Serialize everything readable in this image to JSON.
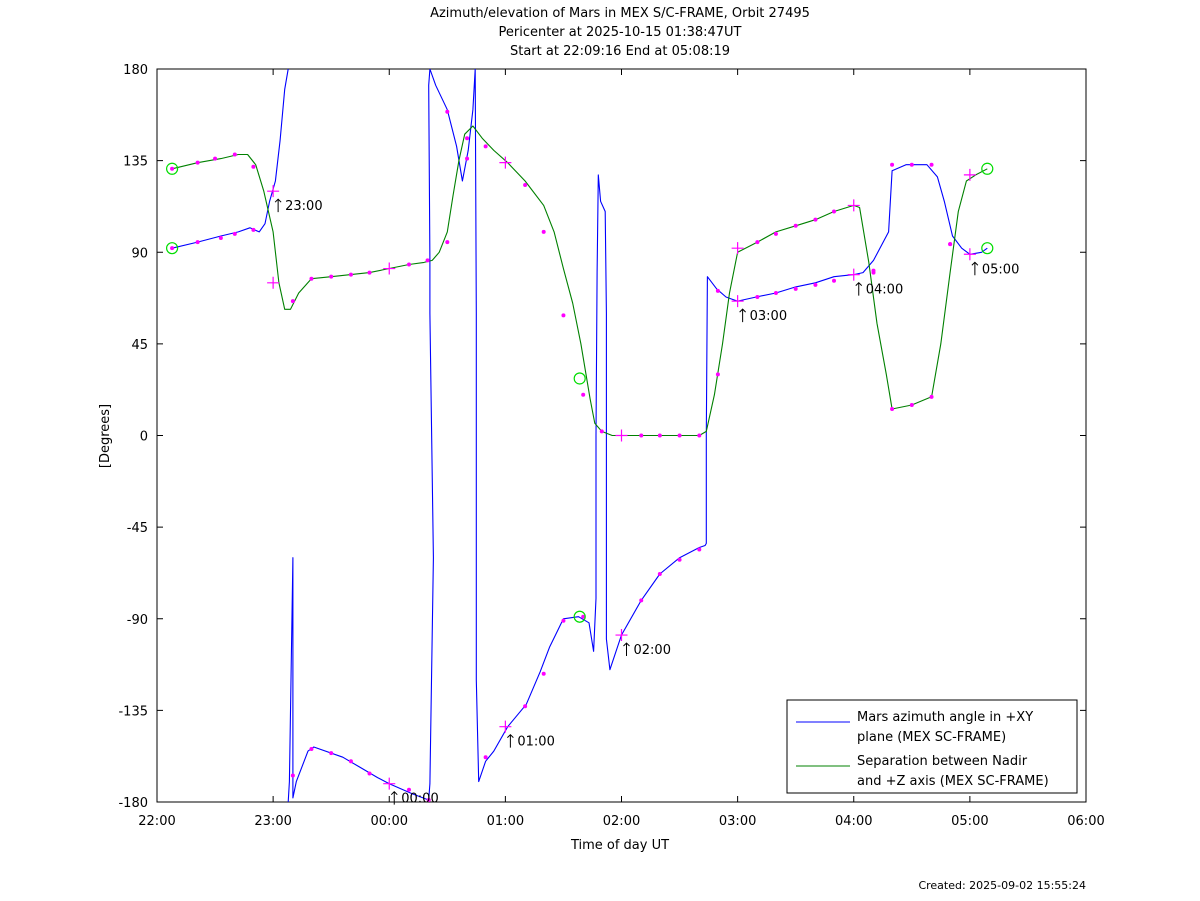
{
  "chart_data": {
    "type": "line",
    "title": "Azimuth/elevation of Mars in MEX S/C-FRAME,  Orbit 27495",
    "subtitle_1": "Pericenter at 2025-10-15 01:38:47UT",
    "subtitle_2": "Start at 22:09:16 End at 05:08:19",
    "xlabel": "Time of day UT",
    "ylabel": "[Degrees]",
    "xlim": [
      22.0,
      30.0
    ],
    "ylim": [
      -180,
      180
    ],
    "x_ticks": [
      {
        "v": 22,
        "label": "22:00"
      },
      {
        "v": 23,
        "label": "23:00"
      },
      {
        "v": 24,
        "label": "00:00"
      },
      {
        "v": 25,
        "label": "01:00"
      },
      {
        "v": 26,
        "label": "02:00"
      },
      {
        "v": 27,
        "label": "03:00"
      },
      {
        "v": 28,
        "label": "04:00"
      },
      {
        "v": 29,
        "label": "05:00"
      },
      {
        "v": 30,
        "label": "06:00"
      }
    ],
    "y_ticks": [
      {
        "v": 180,
        "label": "180"
      },
      {
        "v": 135,
        "label": "135"
      },
      {
        "v": 90,
        "label": "90"
      },
      {
        "v": 45,
        "label": "45"
      },
      {
        "v": 0,
        "label": "0"
      },
      {
        "v": -45,
        "label": "-45"
      },
      {
        "v": -90,
        "label": "-90"
      },
      {
        "v": -135,
        "label": "-135"
      },
      {
        "v": -180,
        "label": "-180"
      }
    ],
    "grid": false,
    "legend_position": "bottom-right",
    "series": [
      {
        "name_line1": "Mars azimuth angle in +XY",
        "name_line2": "plane (MEX SC-FRAME)",
        "color": "#0000ff",
        "points": [
          [
            22.13,
            92
          ],
          [
            22.35,
            95
          ],
          [
            22.55,
            98
          ],
          [
            22.7,
            100
          ],
          [
            22.8,
            102
          ],
          [
            22.88,
            100
          ],
          [
            22.93,
            104
          ],
          [
            22.97,
            115
          ],
          [
            23.02,
            125
          ],
          [
            23.06,
            145
          ],
          [
            23.1,
            170
          ],
          [
            23.13,
            180
          ],
          [
            null,
            null
          ],
          [
            23.13,
            -180
          ],
          [
            23.14,
            -170
          ],
          [
            23.17,
            -60
          ],
          [
            23.17,
            -178
          ],
          [
            23.2,
            -170
          ],
          [
            23.3,
            -155
          ],
          [
            23.35,
            -153
          ],
          [
            23.6,
            -158
          ],
          [
            23.75,
            -163
          ],
          [
            23.9,
            -168
          ],
          [
            24.0,
            -171
          ],
          [
            24.2,
            -176
          ],
          [
            24.34,
            -179
          ],
          [
            24.35,
            -171
          ],
          [
            24.38,
            -60
          ],
          [
            24.35,
            60
          ],
          [
            24.35,
            86
          ],
          [
            24.34,
            172
          ],
          [
            24.35,
            180
          ],
          [
            null,
            null
          ],
          [
            24.35,
            180
          ],
          [
            24.4,
            172
          ],
          [
            24.5,
            160
          ],
          [
            24.58,
            142
          ],
          [
            24.63,
            125
          ],
          [
            24.68,
            140
          ],
          [
            24.72,
            160
          ],
          [
            24.74,
            180
          ],
          [
            null,
            null
          ],
          [
            24.74,
            180
          ],
          [
            24.75,
            60
          ],
          [
            24.75,
            -120
          ],
          [
            24.77,
            -170
          ],
          [
            24.83,
            -160
          ],
          [
            24.9,
            -155
          ],
          [
            25.02,
            -143
          ],
          [
            25.18,
            -132
          ],
          [
            25.3,
            -116
          ],
          [
            25.38,
            -104
          ],
          [
            25.5,
            -90
          ],
          [
            25.63,
            -89
          ],
          [
            25.72,
            -92
          ],
          [
            25.76,
            -106
          ],
          [
            25.78,
            -80
          ],
          [
            25.78,
            0
          ],
          [
            25.79,
            80
          ],
          [
            25.8,
            128
          ],
          [
            25.82,
            115
          ],
          [
            25.86,
            110
          ],
          [
            25.87,
            60
          ],
          [
            25.87,
            -100
          ],
          [
            25.9,
            -115
          ],
          [
            26.0,
            -98
          ],
          [
            26.17,
            -81
          ],
          [
            26.33,
            -68
          ],
          [
            26.5,
            -60
          ],
          [
            26.67,
            -55
          ],
          [
            26.72,
            -54
          ],
          [
            26.73,
            -53
          ],
          [
            26.73,
            0
          ],
          [
            26.74,
            78
          ],
          [
            26.82,
            72
          ],
          [
            26.9,
            68
          ],
          [
            26.95,
            67
          ],
          [
            27.0,
            66
          ],
          [
            27.16,
            68
          ],
          [
            27.33,
            70
          ],
          [
            27.5,
            73
          ],
          [
            27.67,
            75
          ],
          [
            27.83,
            78
          ],
          [
            28.0,
            79
          ],
          [
            28.08,
            80
          ],
          [
            28.17,
            86
          ],
          [
            28.3,
            100
          ],
          [
            28.33,
            130
          ],
          [
            28.45,
            133
          ],
          [
            28.63,
            133
          ],
          [
            28.72,
            127
          ],
          [
            28.78,
            115
          ],
          [
            28.85,
            98
          ],
          [
            28.93,
            92
          ],
          [
            29.0,
            89
          ],
          [
            29.1,
            90
          ],
          [
            29.15,
            92
          ]
        ]
      },
      {
        "name_line1": "Separation between Nadir",
        "name_line2": "and +Z axis (MEX SC-FRAME)",
        "color": "#008000",
        "points": [
          [
            22.13,
            131
          ],
          [
            22.35,
            134
          ],
          [
            22.55,
            136
          ],
          [
            22.7,
            138
          ],
          [
            22.78,
            138
          ],
          [
            22.85,
            133
          ],
          [
            22.92,
            120
          ],
          [
            23.0,
            100
          ],
          [
            23.05,
            75
          ],
          [
            23.1,
            62
          ],
          [
            23.15,
            62
          ],
          [
            23.22,
            70
          ],
          [
            23.33,
            77
          ],
          [
            23.5,
            78
          ],
          [
            23.67,
            79
          ],
          [
            23.83,
            80
          ],
          [
            24.0,
            82
          ],
          [
            24.17,
            84
          ],
          [
            24.3,
            85
          ],
          [
            24.37,
            86
          ],
          [
            24.43,
            90
          ],
          [
            24.5,
            100
          ],
          [
            24.55,
            118
          ],
          [
            24.6,
            135
          ],
          [
            24.65,
            148
          ],
          [
            24.72,
            152
          ],
          [
            24.8,
            146
          ],
          [
            24.9,
            140
          ],
          [
            25.02,
            134
          ],
          [
            25.17,
            125
          ],
          [
            25.33,
            113
          ],
          [
            25.42,
            100
          ],
          [
            25.5,
            82
          ],
          [
            25.58,
            65
          ],
          [
            25.65,
            45
          ],
          [
            25.7,
            28
          ],
          [
            25.73,
            18
          ],
          [
            25.77,
            6
          ],
          [
            25.83,
            2
          ],
          [
            25.92,
            0
          ],
          [
            26.0,
            0
          ],
          [
            26.33,
            0
          ],
          [
            26.67,
            0
          ],
          [
            26.73,
            2
          ],
          [
            26.8,
            20
          ],
          [
            26.87,
            45
          ],
          [
            26.93,
            70
          ],
          [
            27.0,
            90
          ],
          [
            27.17,
            95
          ],
          [
            27.33,
            100
          ],
          [
            27.5,
            103
          ],
          [
            27.67,
            106
          ],
          [
            27.83,
            110
          ],
          [
            28.0,
            113
          ],
          [
            28.05,
            112
          ],
          [
            28.13,
            85
          ],
          [
            28.2,
            55
          ],
          [
            28.28,
            30
          ],
          [
            28.33,
            13
          ],
          [
            28.5,
            15
          ],
          [
            28.67,
            19
          ],
          [
            28.75,
            45
          ],
          [
            28.83,
            80
          ],
          [
            28.9,
            110
          ],
          [
            28.97,
            125
          ],
          [
            29.05,
            128
          ],
          [
            29.15,
            131
          ]
        ]
      }
    ],
    "dot_markers": {
      "blue": [
        [
          22.13,
          92
        ],
        [
          22.35,
          95
        ],
        [
          22.55,
          97
        ],
        [
          22.67,
          99
        ],
        [
          22.83,
          101
        ],
        [
          23.17,
          -167
        ],
        [
          23.33,
          -154
        ],
        [
          23.5,
          -156
        ],
        [
          23.67,
          -160
        ],
        [
          23.83,
          -166
        ],
        [
          24.17,
          -174
        ],
        [
          24.34,
          -179
        ],
        [
          24.5,
          159
        ],
        [
          24.67,
          136
        ],
        [
          24.83,
          -158
        ],
        [
          25.17,
          -133
        ],
        [
          25.33,
          -117
        ],
        [
          25.5,
          -91
        ],
        [
          25.67,
          -89
        ],
        [
          26.17,
          -81
        ],
        [
          26.33,
          -68
        ],
        [
          26.5,
          -61
        ],
        [
          26.67,
          -56
        ],
        [
          26.83,
          71
        ],
        [
          27.17,
          68
        ],
        [
          27.33,
          70
        ],
        [
          27.5,
          72
        ],
        [
          27.67,
          74
        ],
        [
          27.83,
          76
        ],
        [
          28.17,
          81
        ],
        [
          28.33,
          133
        ],
        [
          28.5,
          133
        ],
        [
          28.67,
          133
        ],
        [
          28.83,
          94
        ]
      ],
      "green": [
        [
          22.13,
          131
        ],
        [
          22.35,
          134
        ],
        [
          22.5,
          136
        ],
        [
          22.67,
          138
        ],
        [
          22.83,
          132
        ],
        [
          23.17,
          66
        ],
        [
          23.33,
          77
        ],
        [
          23.5,
          78
        ],
        [
          23.67,
          79
        ],
        [
          23.83,
          80
        ],
        [
          24.17,
          84
        ],
        [
          24.33,
          86
        ],
        [
          24.5,
          95
        ],
        [
          24.67,
          146
        ],
        [
          24.83,
          142
        ],
        [
          25.17,
          123
        ],
        [
          25.33,
          100
        ],
        [
          25.5,
          59
        ],
        [
          25.67,
          20
        ],
        [
          25.83,
          2
        ],
        [
          26.17,
          0
        ],
        [
          26.33,
          0
        ],
        [
          26.5,
          0
        ],
        [
          26.67,
          0
        ],
        [
          26.83,
          30
        ],
        [
          27.17,
          95
        ],
        [
          27.33,
          99
        ],
        [
          27.5,
          103
        ],
        [
          27.67,
          106
        ],
        [
          27.83,
          110
        ],
        [
          28.17,
          80
        ],
        [
          28.33,
          13
        ],
        [
          28.5,
          15
        ],
        [
          28.67,
          19
        ],
        [
          28.83,
          94
        ]
      ]
    },
    "plus_markers": [
      [
        23.0,
        120
      ],
      [
        23.0,
        75
      ],
      [
        24.0,
        -171
      ],
      [
        24.0,
        82
      ],
      [
        25.0,
        -143
      ],
      [
        25.0,
        134
      ],
      [
        26.0,
        -98
      ],
      [
        26.0,
        0
      ],
      [
        27.0,
        66
      ],
      [
        27.0,
        92
      ],
      [
        28.0,
        113
      ],
      [
        28.0,
        79
      ],
      [
        29.0,
        89
      ],
      [
        29.0,
        128
      ]
    ],
    "circle_markers": [
      [
        22.13,
        131
      ],
      [
        22.13,
        92
      ],
      [
        25.64,
        28
      ],
      [
        25.64,
        -89
      ],
      [
        29.15,
        131
      ],
      [
        29.15,
        92
      ]
    ],
    "hour_annotations": [
      {
        "x": 23.0,
        "y": 120,
        "label": "23:00"
      },
      {
        "x": 24.0,
        "y": -171,
        "label": "00:00"
      },
      {
        "x": 25.0,
        "y": -143,
        "label": "01:00"
      },
      {
        "x": 26.0,
        "y": -98,
        "label": "02:00"
      },
      {
        "x": 27.0,
        "y": 66,
        "label": "03:00"
      },
      {
        "x": 28.0,
        "y": 79,
        "label": "04:00"
      },
      {
        "x": 29.0,
        "y": 89,
        "label": "05:00"
      }
    ]
  },
  "footer": {
    "created": "Created: 2025-09-02 15:55:24"
  }
}
